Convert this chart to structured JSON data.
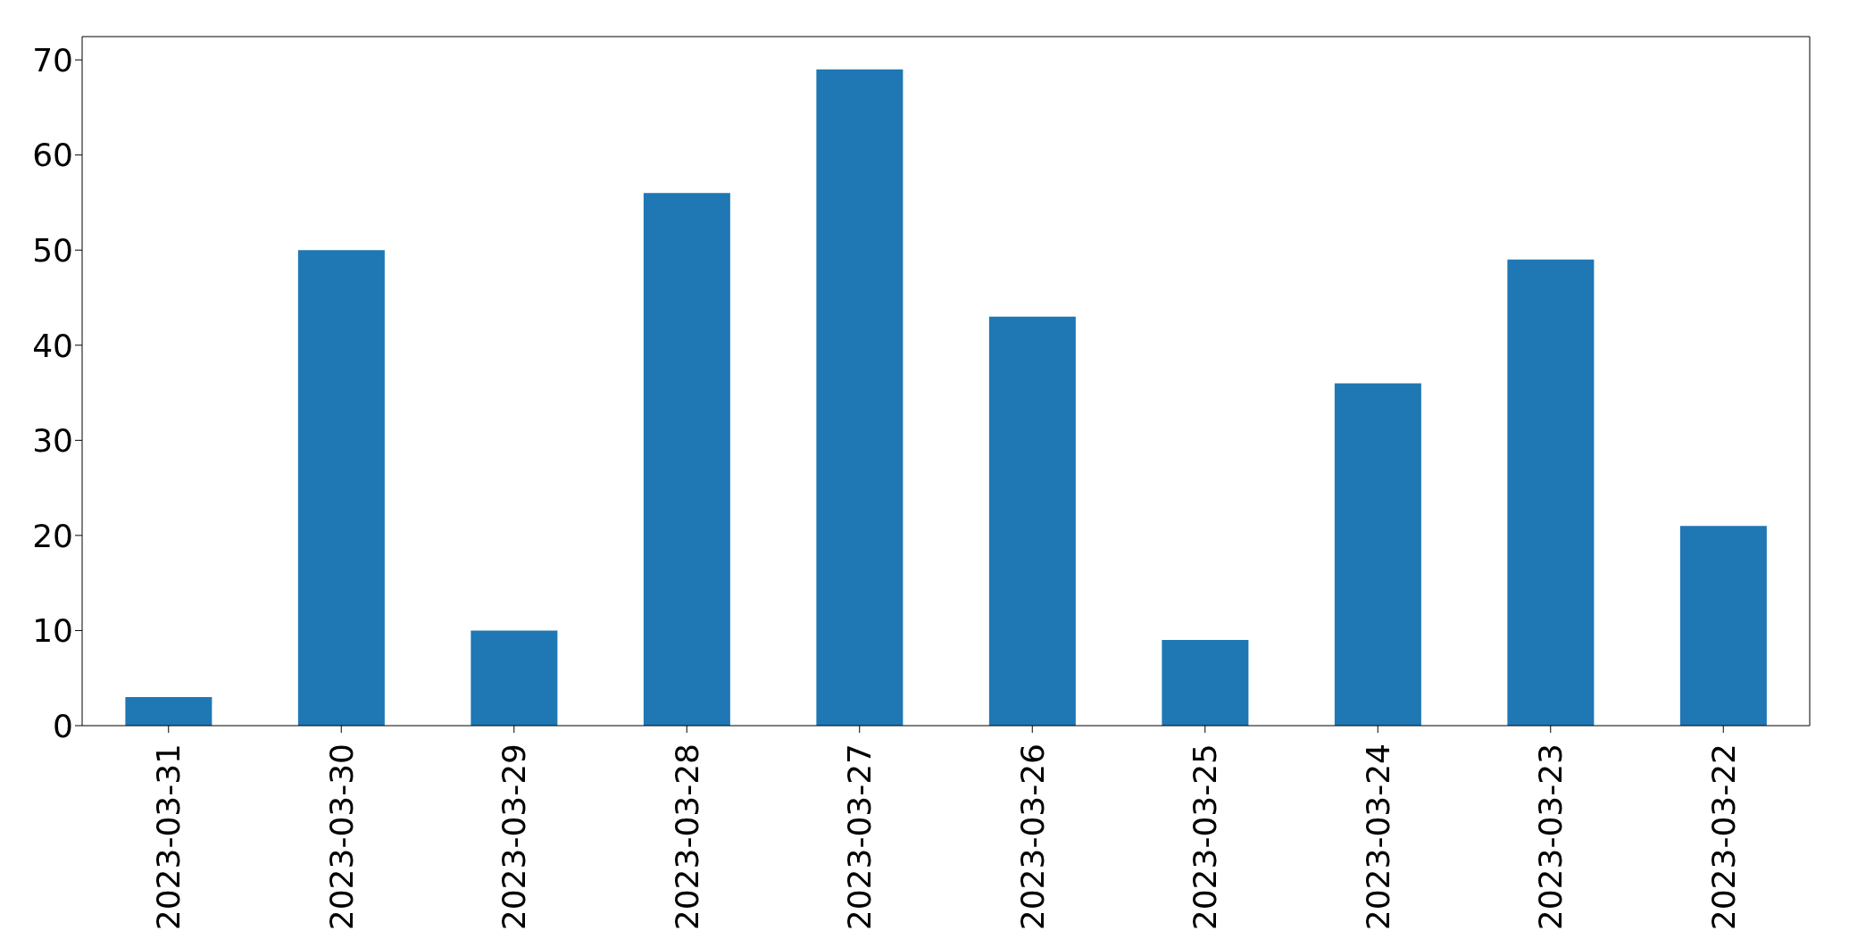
{
  "chart_data": {
    "type": "bar",
    "categories": [
      "2023-03-31",
      "2023-03-30",
      "2023-03-29",
      "2023-03-28",
      "2023-03-27",
      "2023-03-26",
      "2023-03-25",
      "2023-03-24",
      "2023-03-23",
      "2023-03-22"
    ],
    "values": [
      3,
      50,
      10,
      56,
      69,
      43,
      9,
      36,
      49,
      21
    ],
    "color": "#1f77b4",
    "ylim": [
      0,
      72.45
    ],
    "yticks": [
      0,
      10,
      20,
      30,
      40,
      50,
      60,
      70
    ],
    "grid": false,
    "legend": false
  }
}
